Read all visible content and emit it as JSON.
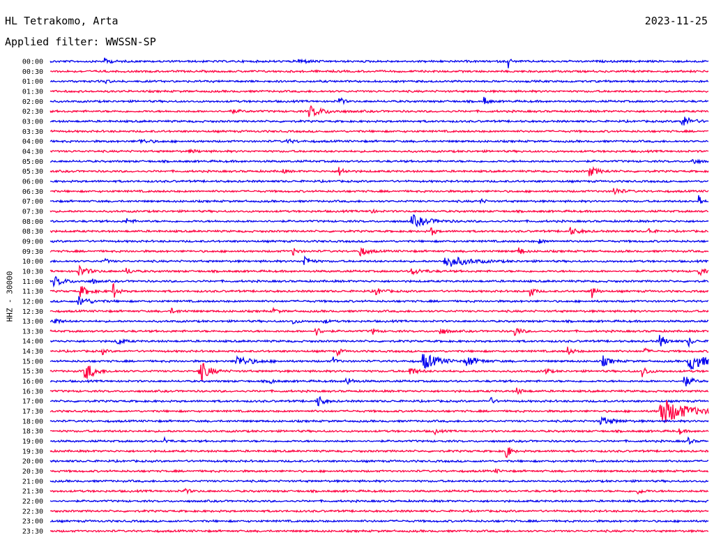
{
  "header": {
    "station": "HL Tetrakomo, Arta",
    "date": "2023-11-25",
    "filter": "Applied filter: WWSSN-SP"
  },
  "ylabel": "HHZ - 30000",
  "colors": {
    "odd_row": "#0000ee",
    "even_row": "#ff0040"
  },
  "chart_data": {
    "type": "line",
    "title": "HL Tetrakomo, Arta",
    "subtitle": "Applied filter: WWSSN-SP",
    "ylabel": "HHZ - 30000",
    "xlabel": "",
    "x_unit": "minutes after row start",
    "xlim": [
      0,
      30
    ],
    "rows": [
      {
        "label": "00:00",
        "events": [
          {
            "t": 2.5,
            "a": 0.6,
            "d": 0.3
          },
          {
            "t": 11.3,
            "a": 0.5,
            "d": 0.5
          },
          {
            "t": 20.9,
            "a": 1.4,
            "d": 0.1
          }
        ]
      },
      {
        "label": "00:30",
        "events": []
      },
      {
        "label": "01:00",
        "events": [
          {
            "t": 2.5,
            "a": 0.5,
            "d": 0.2
          }
        ]
      },
      {
        "label": "01:30",
        "events": []
      },
      {
        "label": "02:00",
        "events": [
          {
            "t": 13.2,
            "a": 0.9,
            "d": 0.2
          },
          {
            "t": 19.8,
            "a": 0.8,
            "d": 0.2
          }
        ]
      },
      {
        "label": "02:30",
        "events": [
          {
            "t": 11.8,
            "a": 1.1,
            "d": 0.8
          },
          {
            "t": 8.2,
            "a": 0.3,
            "d": 0.6
          }
        ]
      },
      {
        "label": "03:00",
        "events": [
          {
            "t": 28.8,
            "a": 1.2,
            "d": 0.5
          }
        ]
      },
      {
        "label": "03:30",
        "events": []
      },
      {
        "label": "04:00",
        "events": [
          {
            "t": 4.1,
            "a": 0.4,
            "d": 0.6
          },
          {
            "t": 10.8,
            "a": 0.3,
            "d": 0.5
          }
        ]
      },
      {
        "label": "04:30",
        "events": [
          {
            "t": 6.4,
            "a": 0.3,
            "d": 0.4
          }
        ]
      },
      {
        "label": "05:00",
        "events": [
          {
            "t": 29.3,
            "a": 0.6,
            "d": 0.3
          }
        ]
      },
      {
        "label": "05:30",
        "events": [
          {
            "t": 13.2,
            "a": 0.8,
            "d": 0.3
          },
          {
            "t": 24.6,
            "a": 0.9,
            "d": 0.5
          },
          {
            "t": 10.6,
            "a": 0.4,
            "d": 0.2
          }
        ]
      },
      {
        "label": "06:00",
        "events": []
      },
      {
        "label": "06:30",
        "events": [
          {
            "t": 25.7,
            "a": 0.8,
            "d": 0.4
          }
        ]
      },
      {
        "label": "07:00",
        "events": [
          {
            "t": 19.6,
            "a": 0.5,
            "d": 0.2
          },
          {
            "t": 29.6,
            "a": 1.6,
            "d": 0.1
          }
        ]
      },
      {
        "label": "07:30",
        "events": [
          {
            "t": 14.6,
            "a": 0.5,
            "d": 0.2
          }
        ]
      },
      {
        "label": "08:00",
        "events": [
          {
            "t": 3.5,
            "a": 0.5,
            "d": 0.3
          },
          {
            "t": 16.5,
            "a": 1.2,
            "d": 0.9
          }
        ]
      },
      {
        "label": "08:30",
        "events": [
          {
            "t": 17.4,
            "a": 0.8,
            "d": 0.2
          },
          {
            "t": 23.7,
            "a": 0.7,
            "d": 0.5
          },
          {
            "t": 27.3,
            "a": 0.7,
            "d": 0.2
          }
        ]
      },
      {
        "label": "09:00",
        "events": [
          {
            "t": 22.3,
            "a": 0.4,
            "d": 0.3
          }
        ]
      },
      {
        "label": "09:30",
        "events": [
          {
            "t": 11.1,
            "a": 0.8,
            "d": 0.2
          },
          {
            "t": 14.1,
            "a": 1.1,
            "d": 0.4
          },
          {
            "t": 21.4,
            "a": 0.8,
            "d": 0.2
          }
        ]
      },
      {
        "label": "10:00",
        "events": [
          {
            "t": 2.5,
            "a": 0.5,
            "d": 0.2
          },
          {
            "t": 11.6,
            "a": 1.2,
            "d": 0.3
          },
          {
            "t": 18.0,
            "a": 1.3,
            "d": 1.2
          }
        ]
      },
      {
        "label": "10:30",
        "events": [
          {
            "t": 1.3,
            "a": 1.1,
            "d": 0.5
          },
          {
            "t": 3.5,
            "a": 0.6,
            "d": 0.3
          },
          {
            "t": 16.5,
            "a": 0.6,
            "d": 0.6
          },
          {
            "t": 29.6,
            "a": 0.8,
            "d": 0.3
          }
        ]
      },
      {
        "label": "11:00",
        "events": [
          {
            "t": 0.2,
            "a": 0.9,
            "d": 0.6
          },
          {
            "t": 1.9,
            "a": 0.6,
            "d": 0.2
          }
        ]
      },
      {
        "label": "11:30",
        "events": [
          {
            "t": 1.4,
            "a": 1.0,
            "d": 0.5
          },
          {
            "t": 2.9,
            "a": 1.6,
            "d": 0.2
          },
          {
            "t": 14.8,
            "a": 0.8,
            "d": 0.4
          },
          {
            "t": 21.9,
            "a": 1.3,
            "d": 0.2
          },
          {
            "t": 24.7,
            "a": 1.5,
            "d": 0.2
          }
        ]
      },
      {
        "label": "12:00",
        "events": [
          {
            "t": 1.3,
            "a": 1.0,
            "d": 0.6
          }
        ]
      },
      {
        "label": "12:30",
        "events": [
          {
            "t": 5.5,
            "a": 0.5,
            "d": 0.4
          },
          {
            "t": 10.2,
            "a": 0.6,
            "d": 0.2
          }
        ]
      },
      {
        "label": "13:00",
        "events": [
          {
            "t": 0.1,
            "a": 1.0,
            "d": 0.3
          },
          {
            "t": 11.1,
            "a": 0.6,
            "d": 0.2
          },
          {
            "t": 12.5,
            "a": 0.5,
            "d": 0.2
          }
        ]
      },
      {
        "label": "13:30",
        "events": [
          {
            "t": 12.1,
            "a": 0.9,
            "d": 0.3
          },
          {
            "t": 14.7,
            "a": 0.6,
            "d": 0.2
          },
          {
            "t": 17.8,
            "a": 0.8,
            "d": 0.3
          },
          {
            "t": 21.2,
            "a": 0.9,
            "d": 0.3
          }
        ]
      },
      {
        "label": "14:00",
        "events": [
          {
            "t": 3.1,
            "a": 0.7,
            "d": 0.3
          },
          {
            "t": 27.8,
            "a": 1.4,
            "d": 0.3
          },
          {
            "t": 29.1,
            "a": 1.0,
            "d": 0.2
          }
        ]
      },
      {
        "label": "14:30",
        "events": [
          {
            "t": 2.4,
            "a": 0.5,
            "d": 0.2
          },
          {
            "t": 13.1,
            "a": 0.7,
            "d": 0.2
          },
          {
            "t": 23.6,
            "a": 0.8,
            "d": 0.3
          },
          {
            "t": 27.1,
            "a": 0.6,
            "d": 0.2
          }
        ]
      },
      {
        "label": "15:00",
        "events": [
          {
            "t": 8.5,
            "a": 1.1,
            "d": 0.8
          },
          {
            "t": 12.9,
            "a": 0.8,
            "d": 0.2
          },
          {
            "t": 17.0,
            "a": 1.8,
            "d": 0.8
          },
          {
            "t": 19.0,
            "a": 1.0,
            "d": 0.6
          },
          {
            "t": 25.2,
            "a": 1.0,
            "d": 0.4
          },
          {
            "t": 29.1,
            "a": 2.0,
            "d": 0.9
          }
        ]
      },
      {
        "label": "15:30",
        "events": [
          {
            "t": 1.6,
            "a": 2.0,
            "d": 0.5
          },
          {
            "t": 6.8,
            "a": 2.4,
            "d": 0.5
          },
          {
            "t": 16.4,
            "a": 0.8,
            "d": 0.4
          },
          {
            "t": 22.6,
            "a": 0.7,
            "d": 0.2
          },
          {
            "t": 27.0,
            "a": 1.1,
            "d": 0.3
          }
        ]
      },
      {
        "label": "16:00",
        "events": [
          {
            "t": 10.0,
            "a": 0.7,
            "d": 0.2
          },
          {
            "t": 13.5,
            "a": 0.9,
            "d": 0.3
          },
          {
            "t": 28.9,
            "a": 1.2,
            "d": 0.4
          }
        ]
      },
      {
        "label": "16:30",
        "events": [
          {
            "t": 21.3,
            "a": 0.6,
            "d": 0.3
          }
        ]
      },
      {
        "label": "17:00",
        "events": [
          {
            "t": 12.2,
            "a": 1.3,
            "d": 0.3
          },
          {
            "t": 20.1,
            "a": 0.6,
            "d": 0.2
          }
        ]
      },
      {
        "label": "17:30",
        "events": [
          {
            "t": 27.8,
            "a": 3.0,
            "d": 1.4
          }
        ]
      },
      {
        "label": "18:00",
        "events": [
          {
            "t": 25.1,
            "a": 0.8,
            "d": 0.7
          }
        ]
      },
      {
        "label": "18:30",
        "events": [
          {
            "t": 17.5,
            "a": 0.6,
            "d": 0.2
          },
          {
            "t": 28.7,
            "a": 0.5,
            "d": 0.2
          }
        ]
      },
      {
        "label": "19:00",
        "events": [
          {
            "t": 5.2,
            "a": 0.7,
            "d": 0.2
          },
          {
            "t": 29.1,
            "a": 0.6,
            "d": 0.2
          }
        ]
      },
      {
        "label": "19:30",
        "events": [
          {
            "t": 20.8,
            "a": 1.8,
            "d": 0.2
          }
        ]
      },
      {
        "label": "20:00",
        "events": []
      },
      {
        "label": "20:30",
        "events": [
          {
            "t": 20.3,
            "a": 0.4,
            "d": 0.2
          }
        ]
      },
      {
        "label": "21:00",
        "events": []
      },
      {
        "label": "21:30",
        "events": [
          {
            "t": 6.1,
            "a": 0.5,
            "d": 0.3
          },
          {
            "t": 26.8,
            "a": 0.5,
            "d": 0.3
          }
        ]
      },
      {
        "label": "22:00",
        "events": []
      },
      {
        "label": "22:30",
        "events": []
      },
      {
        "label": "23:00",
        "events": []
      },
      {
        "label": "23:30",
        "events": []
      }
    ]
  }
}
